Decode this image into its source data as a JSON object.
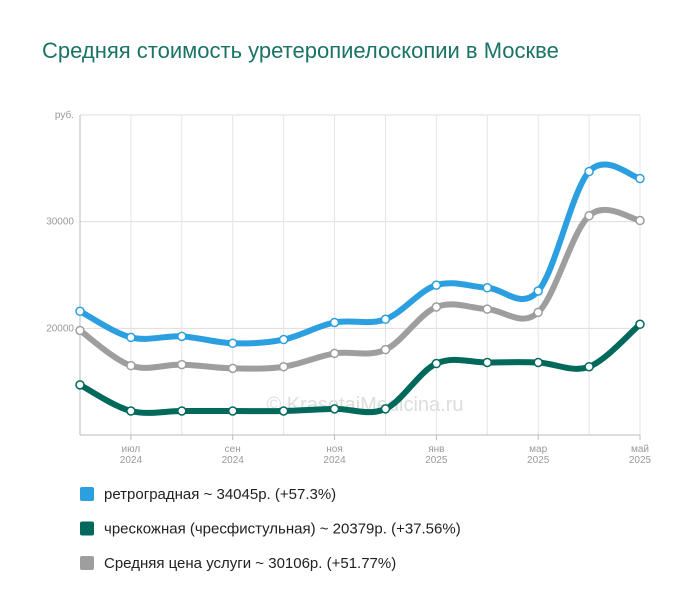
{
  "chart_data": {
    "type": "line",
    "title": "Средняя стоимость уретеропиелоскопии в Москве",
    "y_unit": "руб.",
    "watermark": "© KrasotaiMedicina.ru",
    "categories": [
      null,
      [
        "июл",
        "2024"
      ],
      null,
      [
        "сен",
        "2024"
      ],
      null,
      [
        "ноя",
        "2024"
      ],
      null,
      [
        "янв",
        "2025"
      ],
      null,
      [
        "мар",
        "2025"
      ],
      null,
      [
        "май",
        "2025"
      ]
    ],
    "ylim": [
      10000,
      40000
    ],
    "yticks": [
      20000,
      30000
    ],
    "grid": true,
    "series": [
      {
        "name": "ретроградная ~ 34045р. (+57.3%)",
        "color": "#2b9fe0",
        "values": [
          21600,
          19150,
          19250,
          18600,
          18950,
          20550,
          20850,
          24050,
          23800,
          23500,
          34700,
          34045
        ]
      },
      {
        "name": "чрескожная (чресфистульная) ~ 20379р. (+37.56%)",
        "color": "#00695c",
        "values": [
          14700,
          12250,
          12250,
          12250,
          12250,
          12450,
          12450,
          16700,
          16800,
          16800,
          16400,
          20379
        ]
      },
      {
        "name": "Средняя цена услуги ~ 30106р. (+51.77%)",
        "color": "#9e9e9e",
        "values": [
          19800,
          16500,
          16600,
          16250,
          16400,
          17650,
          18000,
          22000,
          21800,
          21500,
          30550,
          30106
        ]
      }
    ]
  }
}
